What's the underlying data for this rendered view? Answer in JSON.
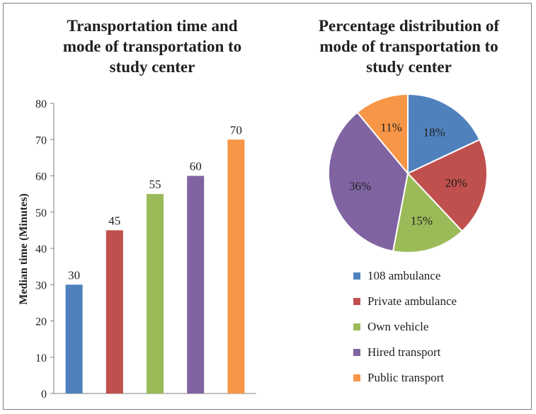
{
  "chart_data": [
    {
      "type": "bar",
      "title": "Transportation time and mode of transportation to study center",
      "title_lines": [
        "Transportation time and",
        "mode of transportation to",
        "study center"
      ],
      "ylabel": "Median time (Minutes)",
      "xlabel": "",
      "ylim": [
        0,
        80
      ],
      "yticks": [
        0,
        10,
        20,
        30,
        40,
        50,
        60,
        70,
        80
      ],
      "categories": [
        "108 ambulance",
        "Private ambulance",
        "Own vehicle",
        "Hired transport",
        "Public transport"
      ],
      "values": [
        30,
        45,
        55,
        60,
        70
      ],
      "colors": [
        "#4f81bd",
        "#c0504d",
        "#9bbb59",
        "#8064a2",
        "#f79646"
      ],
      "grid": false
    },
    {
      "type": "pie",
      "title": "Percentage distribution of mode of transportation to study center",
      "title_lines": [
        "Percentage distribution of",
        "mode of transportation to",
        "study center"
      ],
      "categories": [
        "108 ambulance",
        "Private ambulance",
        "Own vehicle",
        "Hired transport",
        "Public transport"
      ],
      "values": [
        18,
        20,
        15,
        36,
        11
      ],
      "labels": [
        "18%",
        "20%",
        "15%",
        "36%",
        "11%"
      ],
      "colors": [
        "#4f81bd",
        "#c0504d",
        "#9bbb59",
        "#8064a2",
        "#f79646"
      ],
      "legend": "bottom"
    }
  ]
}
